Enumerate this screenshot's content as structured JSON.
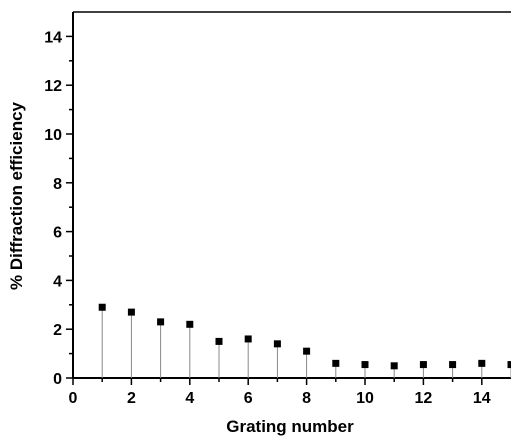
{
  "chart_data": {
    "type": "scatter",
    "title": "",
    "xlabel": "Grating number",
    "ylabel": "% Diffraction efficiency",
    "xlim": [
      0,
      15
    ],
    "ylim": [
      0,
      15
    ],
    "x_ticks": [
      "0",
      "2",
      "4",
      "6",
      "8",
      "10",
      "12",
      "14"
    ],
    "y_ticks": [
      "0",
      "2",
      "4",
      "6",
      "8",
      "10",
      "12",
      "14"
    ],
    "grid": false,
    "legend": "none",
    "series": [
      {
        "x": [
          1,
          2,
          3,
          4,
          5,
          6,
          7,
          8,
          9,
          10,
          11,
          12,
          13,
          14,
          15
        ],
        "y": [
          2.9,
          2.7,
          2.3,
          2.2,
          1.5,
          1.6,
          1.4,
          1.1,
          0.6,
          0.55,
          0.5,
          0.55,
          0.55,
          0.6,
          0.55
        ]
      }
    ],
    "colors": {
      "marker": "#000000",
      "stem": "#888888",
      "axis": "#000000"
    }
  }
}
